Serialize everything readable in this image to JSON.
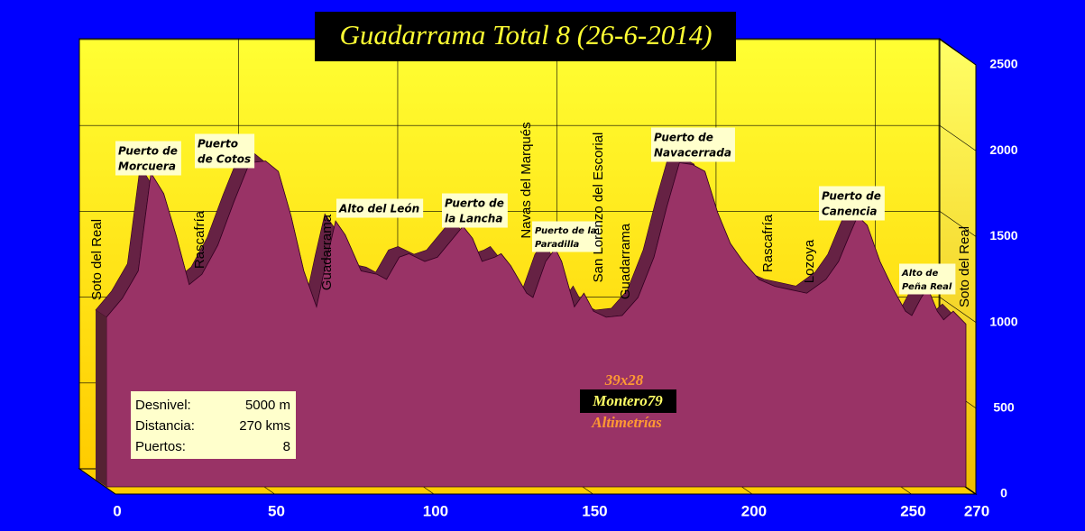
{
  "chart_data": {
    "type": "area",
    "title": "Guadarrama Total 8 (26-6-2014)",
    "x": [
      0,
      5,
      10,
      14,
      18,
      22,
      26,
      30,
      35,
      40,
      45,
      50,
      54,
      58,
      62,
      66,
      69,
      72,
      75,
      80,
      85,
      88,
      92,
      95,
      100,
      104,
      108,
      112,
      115,
      118,
      122,
      124,
      127,
      132,
      134,
      138,
      141,
      143,
      147,
      150,
      153,
      157,
      162,
      167,
      172,
      176,
      180,
      184,
      188,
      192,
      196,
      200,
      205,
      210,
      215,
      220,
      226,
      230,
      233,
      236,
      239,
      243,
      247,
      251,
      253,
      256,
      258,
      261,
      263,
      266,
      270
    ],
    "y": [
      1030,
      1140,
      1300,
      1870,
      1750,
      1500,
      1220,
      1280,
      1450,
      1700,
      1930,
      1940,
      1880,
      1620,
      1300,
      1090,
      1350,
      1590,
      1510,
      1300,
      1280,
      1250,
      1380,
      1400,
      1355,
      1380,
      1470,
      1560,
      1490,
      1355,
      1380,
      1400,
      1330,
      1170,
      1145,
      1355,
      1430,
      1355,
      1090,
      1170,
      1065,
      1030,
      1040,
      1145,
      1380,
      1670,
      1930,
      1920,
      1880,
      1640,
      1460,
      1355,
      1250,
      1210,
      1190,
      1170,
      1250,
      1355,
      1490,
      1620,
      1565,
      1355,
      1200,
      1065,
      1040,
      1145,
      1200,
      1065,
      1015,
      1065,
      990
    ],
    "color": "#993366",
    "xlim": [
      0,
      270
    ],
    "xticks": [
      0,
      50,
      100,
      150,
      200,
      250,
      270
    ],
    "ylim": [
      0,
      2500
    ],
    "yticks": [
      0,
      500,
      1000,
      1500,
      2000,
      2500
    ],
    "grid": true,
    "annotations": [
      {
        "lines": [
          "Soto del Real"
        ]
      },
      {
        "lines": [
          "Puerto de",
          "Morcuera"
        ]
      },
      {
        "lines": [
          "Puerto",
          "de Cotos"
        ]
      },
      {
        "lines": [
          "Rascafría"
        ]
      },
      {
        "lines": [
          "Guadarrama"
        ]
      },
      {
        "lines": [
          "Alto del León"
        ]
      },
      {
        "lines": [
          "Puerto de",
          "la Lancha"
        ]
      },
      {
        "lines": [
          "Navas del Marqués"
        ]
      },
      {
        "lines": [
          "Puerto de la",
          "Paradilla"
        ]
      },
      {
        "lines": [
          "San Lorenzo del Escorial"
        ]
      },
      {
        "lines": [
          "Guadarrama"
        ]
      },
      {
        "lines": [
          "Puerto de",
          "Navacerrada"
        ]
      },
      {
        "lines": [
          "Rascafría"
        ]
      },
      {
        "lines": [
          "Lozoya"
        ]
      },
      {
        "lines": [
          "Puerto de",
          "Canencia"
        ]
      },
      {
        "lines": [
          "Alto de",
          "Peña Real"
        ]
      },
      {
        "lines": [
          "Soto del Real"
        ]
      }
    ],
    "info": [
      [
        "Desnivel:",
        "5000 m"
      ],
      [
        "Distancia:",
        "270 kms"
      ],
      [
        "Puertos:",
        "8"
      ]
    ],
    "credits": [
      "39x28",
      "Montero79",
      "Altimetrías"
    ]
  }
}
